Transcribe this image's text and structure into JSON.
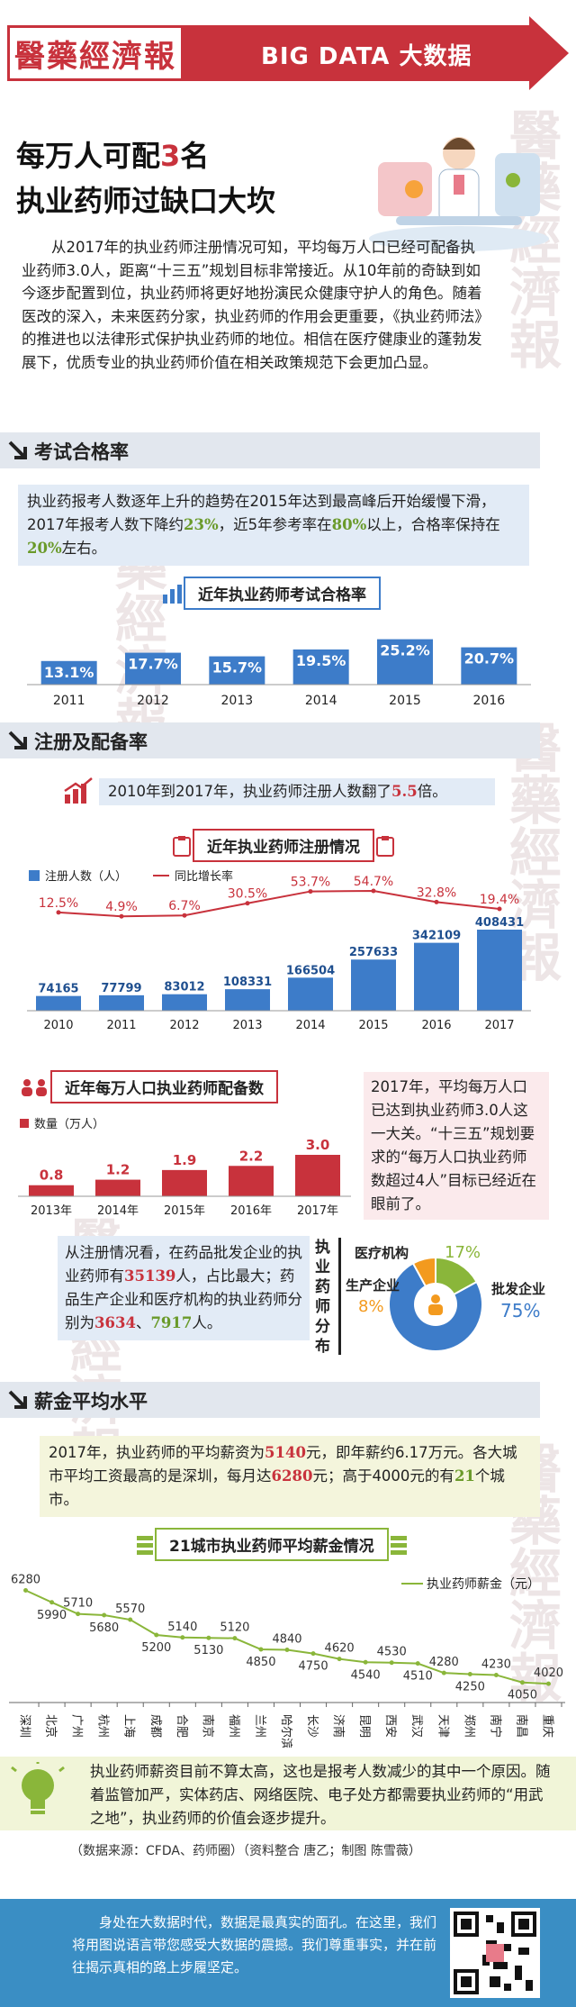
{
  "header": {
    "logo_text": "醫藥經濟報",
    "banner": "BIG DATA  大数据"
  },
  "watermark": "醫藥經濟報",
  "headline": {
    "line1_a": "每万人可配",
    "line1_num": "3",
    "line1_b": "名",
    "line2": "执业药师过缺口大坎"
  },
  "intro": "从2017年的执业药师注册情况可知，平均每万人口已经可配备执业药师3.0人，距离“十三五”规划目标非常接近。从10年前的奇缺到如今逐步配置到位，执业药师将更好地扮演民众健康守护人的角色。随着医改的深入，未来医药分家，执业药师的作用会更重要，《执业药师法》的推进也以法律形式保护执业药师的地位。相信在医疗健康业的蓬勃发展下，优质专业的执业药师价值在相关政策规范下会更加凸显。",
  "sections": {
    "exam": "考试合格率",
    "register": "注册及配备率",
    "salary": "薪金平均水平"
  },
  "exam_box": {
    "p1": "执业药报考人数逐年上升的趋势在2015年达到最高峰后开始缓慢下滑，2017年报考人数下降约",
    "v1": "23%",
    "p2": "，近5年参考率在",
    "v2": "80%",
    "p3": "以上，合格率保持在",
    "v3": "20%",
    "p4": "左右。"
  },
  "register_box": {
    "p1": "2010年到2017年，执业药师注册人数翻了",
    "v1": "5.5",
    "p2": "倍。"
  },
  "density_note": "2017年，平均每万人口已达到执业药师3.0人这一大关。“十三五”规划要求的“每万人口执业药师数超过4人”目标已经近在眼前了。",
  "dist_box": {
    "p1": "从注册情况看，在药品批发企业的执业药师有",
    "v1": "35139",
    "p2": "人，占比最大；药品生产企业和医疗机构的执业药师分别为",
    "v2": "3634",
    "p3": "、",
    "v3": "7917",
    "p4": "人。"
  },
  "salary_box": {
    "p1": "2017年，执业药师的平均薪资为",
    "v1": "5140",
    "p2": "元，即年薪约6.17万元。各大城市平均工资最高的是深圳，每月达",
    "v2": "6280",
    "p3": "元；高于4000元的有",
    "v3": "21",
    "p4": "个城市。"
  },
  "closing": "执业药师薪资目前不算太高，这也是报考人数减少的其中一个原因。随着监管加严，实体药店、网络医院、电子处方都需要执业药师的“用武之地”，执业药师的价值会逐步提升。",
  "source": "（数据来源：CFDA、药师圈）（资料整合 唐乙；制图 陈雪薇）",
  "footer_text": "身处在大数据时代，数据是最真实的面孔。在这里，我们将用图说语言带您感受大数据的震撼。我们尊重事实，并在前往揭示真相的路上步履坚定。",
  "colors": {
    "red": "#c8323c",
    "blue": "#3d7cc9",
    "light_blue": "#e2ebf6",
    "green": "#8ab63a",
    "orange": "#f39a1e",
    "footer": "#3a8ec4"
  },
  "chart_data": [
    {
      "type": "bar",
      "title": "近年执业药师考试合格率",
      "categories": [
        "2011",
        "2012",
        "2013",
        "2014",
        "2015",
        "2016"
      ],
      "values": [
        13.1,
        17.7,
        15.7,
        19.5,
        25.2,
        20.7
      ],
      "labels": [
        "13.1%",
        "17.7%",
        "15.7%",
        "19.5%",
        "25.2%",
        "20.7%"
      ],
      "ylim": [
        0,
        30
      ]
    },
    {
      "type": "bar",
      "title": "近年执业药师注册情况",
      "categories": [
        "2010",
        "2011",
        "2012",
        "2013",
        "2014",
        "2015",
        "2016",
        "2017"
      ],
      "series": [
        {
          "name": "注册人数（人）",
          "values": [
            74165,
            77799,
            83012,
            108331,
            166504,
            257633,
            342109,
            408431
          ]
        },
        {
          "name": "同比增长率",
          "type": "line",
          "values": [
            12.5,
            4.9,
            6.7,
            30.5,
            53.7,
            54.7,
            32.8,
            19.4
          ],
          "labels": [
            "12.5%",
            "4.9%",
            "6.7%",
            "30.5%",
            "53.7%",
            "54.7%",
            "32.8%",
            "19.4%"
          ]
        }
      ],
      "legend": "top-left"
    },
    {
      "type": "bar",
      "title": "近年每万人口执业药师配备数",
      "categories": [
        "2013年",
        "2014年",
        "2015年",
        "2016年",
        "2017年"
      ],
      "series": [
        {
          "name": "数量（万人）",
          "values": [
            0.8,
            1.2,
            1.9,
            2.2,
            3.0
          ],
          "labels": [
            "0.8",
            "1.2",
            "1.9",
            "2.2",
            "3.0"
          ]
        }
      ]
    },
    {
      "type": "pie",
      "title": "执业药师分布",
      "categories": [
        "批发企业",
        "医疗机构",
        "生产企业"
      ],
      "values": [
        75,
        17,
        8
      ],
      "labels": [
        "75%",
        "17%",
        "8%"
      ],
      "colors": [
        "#3d7cc9",
        "#8ab63a",
        "#f39a1e"
      ]
    },
    {
      "type": "line",
      "title": "21城市执业药师平均薪金情况",
      "series_name": "执业药师薪金（元）",
      "categories": [
        "深圳",
        "北京",
        "广州",
        "杭州",
        "上海",
        "成都",
        "合肥",
        "南京",
        "福州",
        "兰州",
        "哈尔滨",
        "长沙",
        "济南",
        "昆明",
        "西安",
        "武汉",
        "天津",
        "郑州",
        "南宁",
        "南昌",
        "重庆"
      ],
      "values": [
        6280,
        5990,
        5710,
        5680,
        5570,
        5200,
        5140,
        5130,
        5120,
        4850,
        4840,
        4750,
        4620,
        4540,
        4530,
        4510,
        4280,
        4250,
        4230,
        4050,
        4020
      ]
    }
  ]
}
